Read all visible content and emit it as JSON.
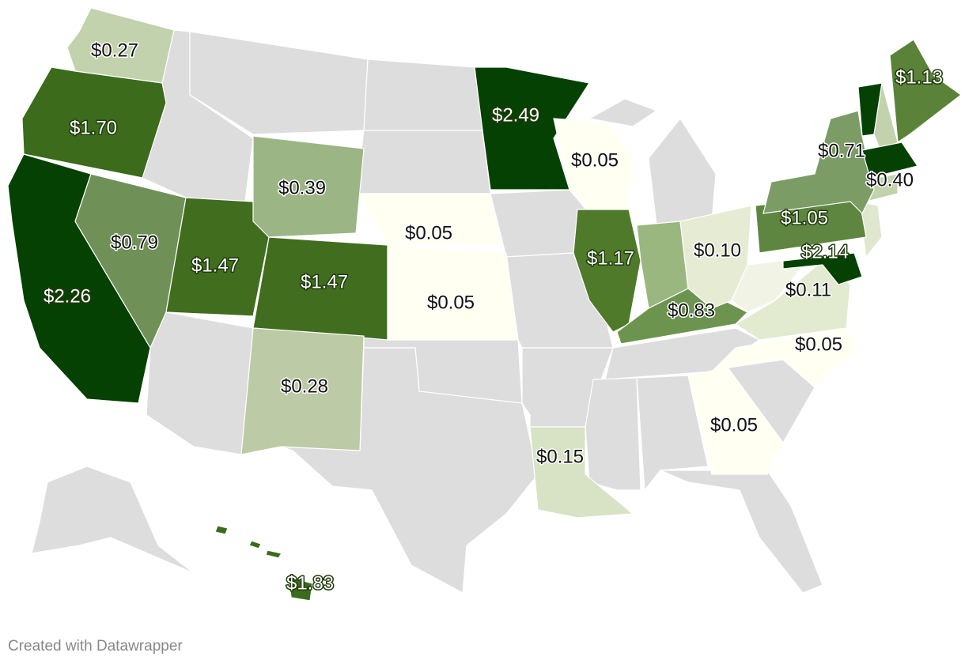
{
  "map": {
    "regions": [
      {
        "value": 0.27,
        "value_label": "$0.27",
        "color": "#c2d2ad"
      },
      {
        "value": 1.7,
        "value_label": "$1.70",
        "color": "#3c6b1c"
      },
      {
        "value": 2.26,
        "value_label": "$2.26",
        "color": "#054103"
      },
      {
        "value": 0.79,
        "value_label": "$0.79",
        "color": "#6f9158"
      },
      {
        "value": 1.47,
        "value_label": "$1.47",
        "color": "#416d1f"
      },
      {
        "value": 1.47,
        "value_label": "$1.47",
        "color": "#416d1f"
      },
      {
        "value": 0.39,
        "value_label": "$0.39",
        "color": "#9bb585"
      },
      {
        "value": 0.28,
        "value_label": "$0.28",
        "color": "#bccaa5"
      },
      {
        "value": 0.05,
        "value_label": "$0.05",
        "color": "#fffff2"
      },
      {
        "value": 0.05,
        "value_label": "$0.05",
        "color": "#fffff2"
      },
      {
        "value": 2.49,
        "value_label": "$2.49",
        "color": "#054103"
      },
      {
        "value": 0.05,
        "value_label": "$0.05",
        "color": "#fffff2"
      },
      {
        "value": 1.17,
        "value_label": "$1.17",
        "color": "#4e7a2a"
      },
      {
        "value": 0.15,
        "value_label": "$0.15",
        "color": "#d8e3c6"
      },
      {
        "value": 0.83,
        "value_label": "$0.83",
        "color": "#6d944f"
      },
      {
        "value": 0.1,
        "value_label": "$0.10",
        "color": "#e6ecd4"
      },
      {
        "value": 0.11,
        "value_label": "$0.11",
        "color": "#e2eacf"
      },
      {
        "value": 0.05,
        "value_label": "$0.05",
        "color": "#fffff2"
      },
      {
        "value": 0.05,
        "value_label": "$0.05",
        "color": "#fffff2"
      },
      {
        "value": 1.05,
        "value_label": "$1.05",
        "color": "#5e8640"
      },
      {
        "value": 0.71,
        "value_label": "$0.71",
        "color": "#7c9c66"
      },
      {
        "value": 1.13,
        "value_label": "$1.13",
        "color": "#5a8339"
      },
      {
        "value": 0.4,
        "value_label": "$0.40",
        "color": "#054103"
      },
      {
        "value": 2.14,
        "value_label": "$2.14",
        "color": "#054103"
      },
      {
        "value": 1.83,
        "value_label": "$1.83",
        "color": "#3c6b1c"
      }
    ],
    "footer": "Created with Datawrapper"
  }
}
